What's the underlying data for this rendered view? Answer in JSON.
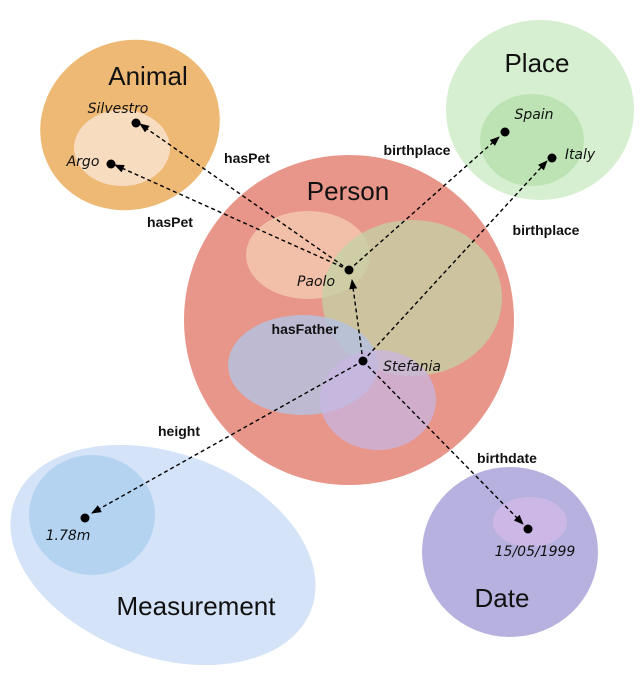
{
  "classes": {
    "animal": "Animal",
    "place": "Place",
    "person": "Person",
    "measurement": "Measurement",
    "date": "Date"
  },
  "instances": {
    "silvestro": "Silvestro",
    "argo": "Argo",
    "spain": "Spain",
    "italy": "Italy",
    "paolo": "Paolo",
    "stefania": "Stefania",
    "height_value": "1.78m",
    "birthdate_value": "15/05/1999"
  },
  "relations": {
    "haspet_1": "hasPet",
    "haspet_2": "hasPet",
    "birthplace_1": "birthplace",
    "birthplace_2": "birthplace",
    "hasfather": "hasFather",
    "height": "height",
    "birthdate": "birthdate"
  },
  "colors": {
    "animal": "#edb975",
    "place": "#d6efd0",
    "person": "#e8958a",
    "measurement": "#d4e3f8",
    "date": "#b6b1de"
  }
}
